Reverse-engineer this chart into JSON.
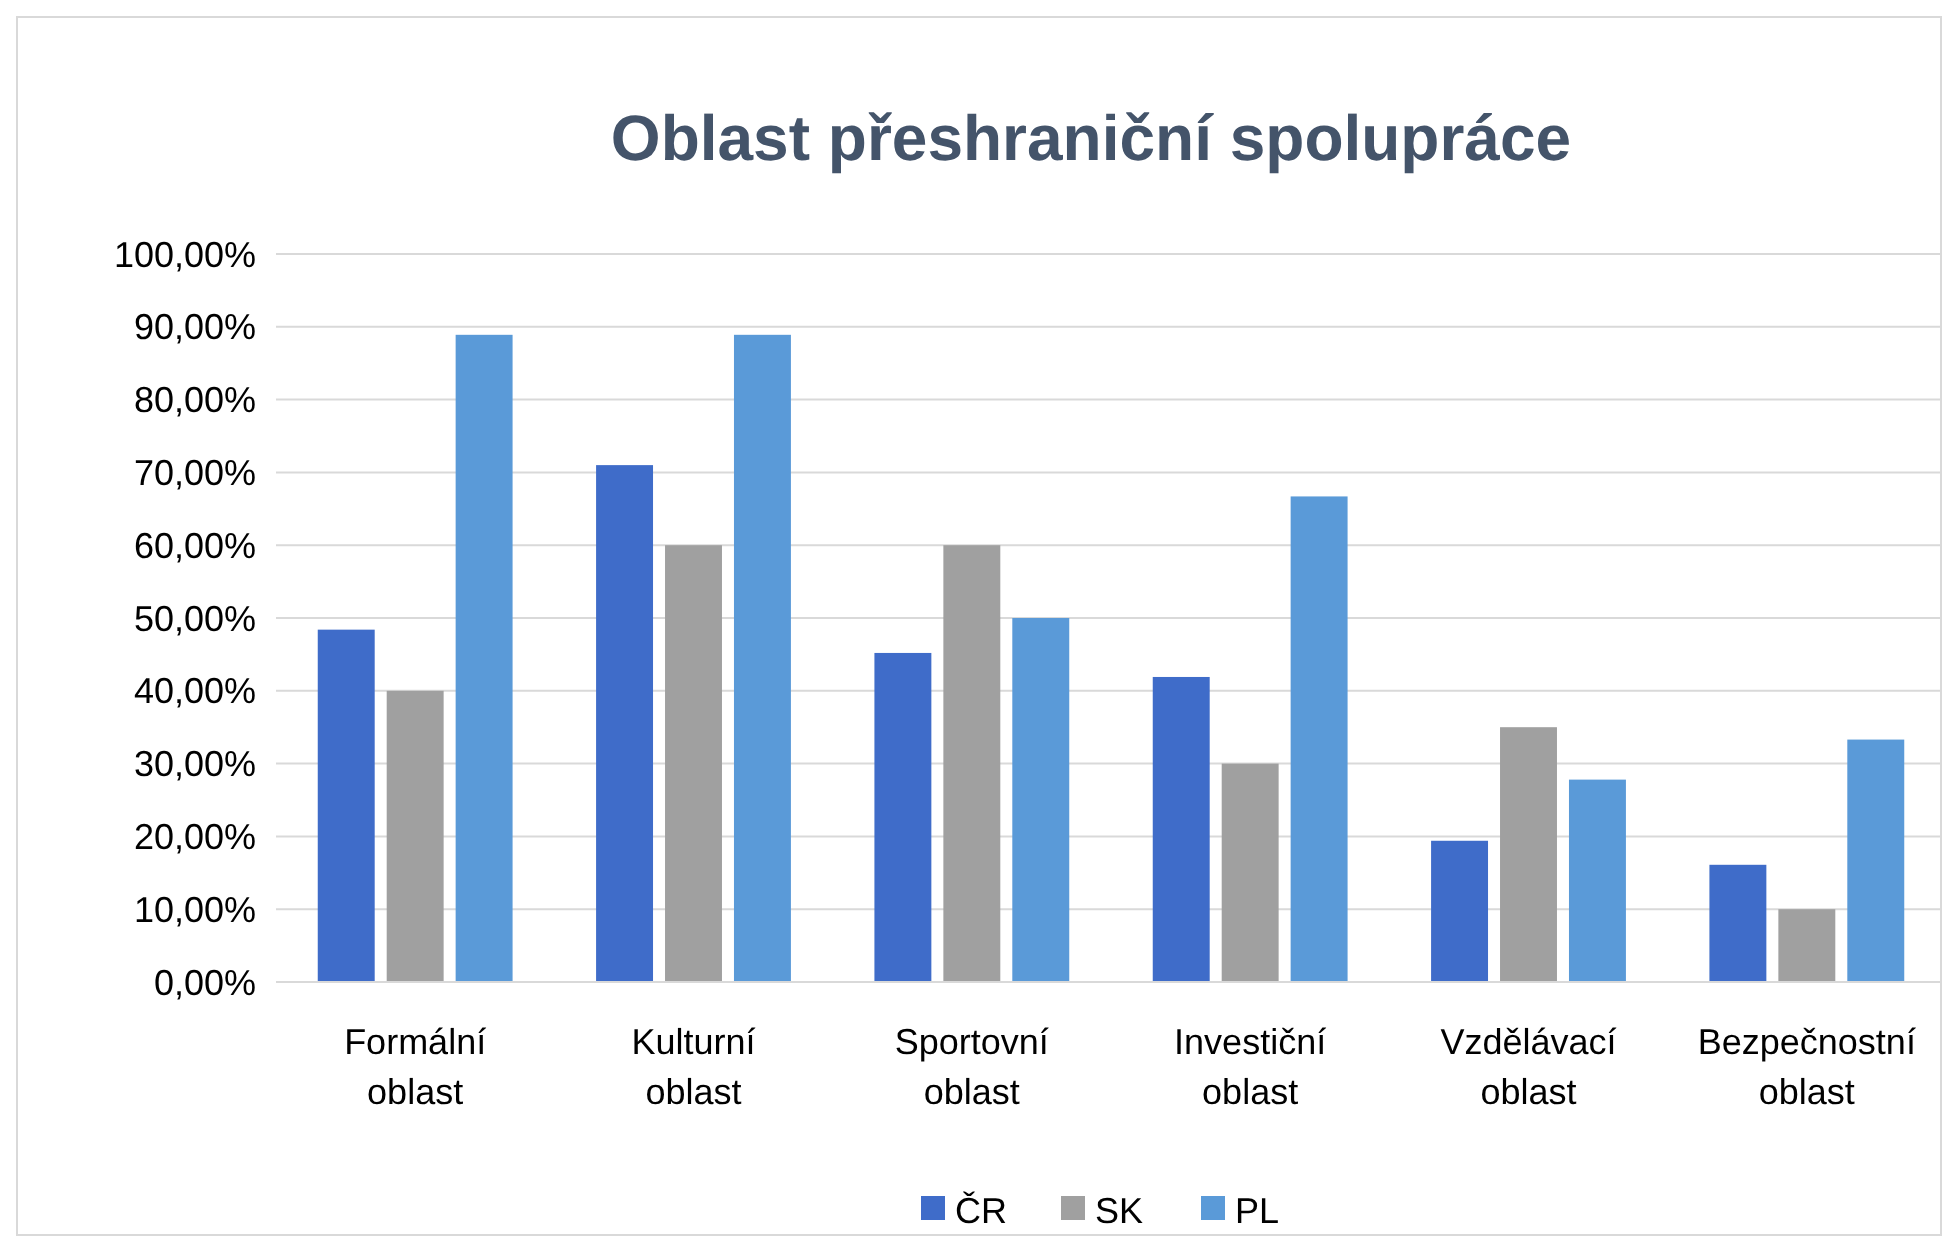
{
  "chart_data": {
    "type": "bar",
    "title": "Oblast přeshraniční spolupráce",
    "categories": [
      "Formální oblast",
      "Kulturní oblast",
      "Sportovní oblast",
      "Investiční oblast",
      "Vzdělávací oblast",
      "Bezpečnostní oblast"
    ],
    "series": [
      {
        "name": "ČR",
        "color": "#3f6cc9",
        "values": [
          48.4,
          71.0,
          45.2,
          41.9,
          19.4,
          16.1
        ]
      },
      {
        "name": "SK",
        "color": "#a0a0a0",
        "values": [
          40,
          60,
          60,
          30,
          35,
          10
        ]
      },
      {
        "name": "PL",
        "color": "#5a9ad8",
        "values": [
          88.9,
          88.9,
          50,
          66.7,
          27.8,
          33.3
        ]
      }
    ],
    "ylim": [
      0,
      100
    ],
    "yticks": [
      {
        "value": 0,
        "label": "0,00%"
      },
      {
        "value": 10,
        "label": "10,00%"
      },
      {
        "value": 20,
        "label": "20,00%"
      },
      {
        "value": 30,
        "label": "30,00%"
      },
      {
        "value": 40,
        "label": "40,00%"
      },
      {
        "value": 50,
        "label": "50,00%"
      },
      {
        "value": 60,
        "label": "60,00%"
      },
      {
        "value": 70,
        "label": "70,00%"
      },
      {
        "value": 80,
        "label": "80,00%"
      },
      {
        "value": 90,
        "label": "90,00%"
      },
      {
        "value": 100,
        "label": "100,00%"
      }
    ],
    "grid": "y",
    "legend": "bottom"
  }
}
